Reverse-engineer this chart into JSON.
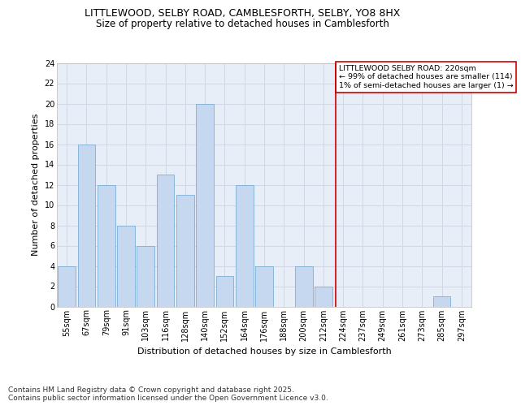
{
  "title1": "LITTLEWOOD, SELBY ROAD, CAMBLESFORTH, SELBY, YO8 8HX",
  "title2": "Size of property relative to detached houses in Camblesforth",
  "xlabel": "Distribution of detached houses by size in Camblesforth",
  "ylabel": "Number of detached properties",
  "categories": [
    "55sqm",
    "67sqm",
    "79sqm",
    "91sqm",
    "103sqm",
    "116sqm",
    "128sqm",
    "140sqm",
    "152sqm",
    "164sqm",
    "176sqm",
    "188sqm",
    "200sqm",
    "212sqm",
    "224sqm",
    "237sqm",
    "249sqm",
    "261sqm",
    "273sqm",
    "285sqm",
    "297sqm"
  ],
  "values": [
    4,
    16,
    12,
    8,
    6,
    13,
    11,
    20,
    3,
    12,
    4,
    0,
    4,
    2,
    0,
    0,
    0,
    0,
    0,
    1,
    0
  ],
  "bar_color": "#c5d8f0",
  "bar_edge_color": "#7aafd4",
  "grid_color": "#d0d8e8",
  "background_color": "#e8eef8",
  "red_line_x": 13.62,
  "annotation_text": "LITTLEWOOD SELBY ROAD: 220sqm\n← 99% of detached houses are smaller (114)\n1% of semi-detached houses are larger (1) →",
  "annotation_box_color": "#ffffff",
  "annotation_border_color": "#cc0000",
  "ylim": [
    0,
    24
  ],
  "yticks": [
    0,
    2,
    4,
    6,
    8,
    10,
    12,
    14,
    16,
    18,
    20,
    22,
    24
  ],
  "footer": "Contains HM Land Registry data © Crown copyright and database right 2025.\nContains public sector information licensed under the Open Government Licence v3.0.",
  "title_fontsize": 9,
  "subtitle_fontsize": 8.5,
  "axis_label_fontsize": 8,
  "tick_fontsize": 7,
  "footer_fontsize": 6.5
}
